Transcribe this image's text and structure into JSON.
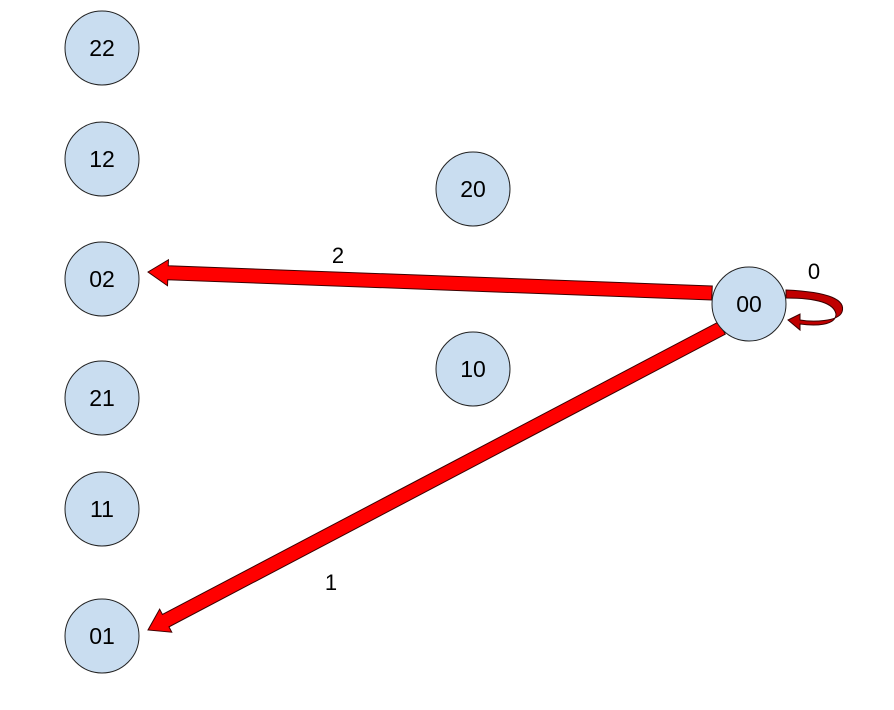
{
  "colors": {
    "node_fill": "#c9ddf0",
    "node_stroke": "#222222",
    "edge": "#ff0000",
    "edge_stroke": "#3a0000"
  },
  "nodes": [
    {
      "id": "22",
      "label": "22"
    },
    {
      "id": "12",
      "label": "12"
    },
    {
      "id": "02",
      "label": "02"
    },
    {
      "id": "21",
      "label": "21"
    },
    {
      "id": "11",
      "label": "11"
    },
    {
      "id": "01",
      "label": "01"
    },
    {
      "id": "20",
      "label": "20"
    },
    {
      "id": "10",
      "label": "10"
    },
    {
      "id": "00",
      "label": "00"
    }
  ],
  "edges": [
    {
      "from": "00",
      "to": "02",
      "label": "2"
    },
    {
      "from": "00",
      "to": "01",
      "label": "1"
    },
    {
      "from": "00",
      "to": "00",
      "label": "0"
    }
  ]
}
